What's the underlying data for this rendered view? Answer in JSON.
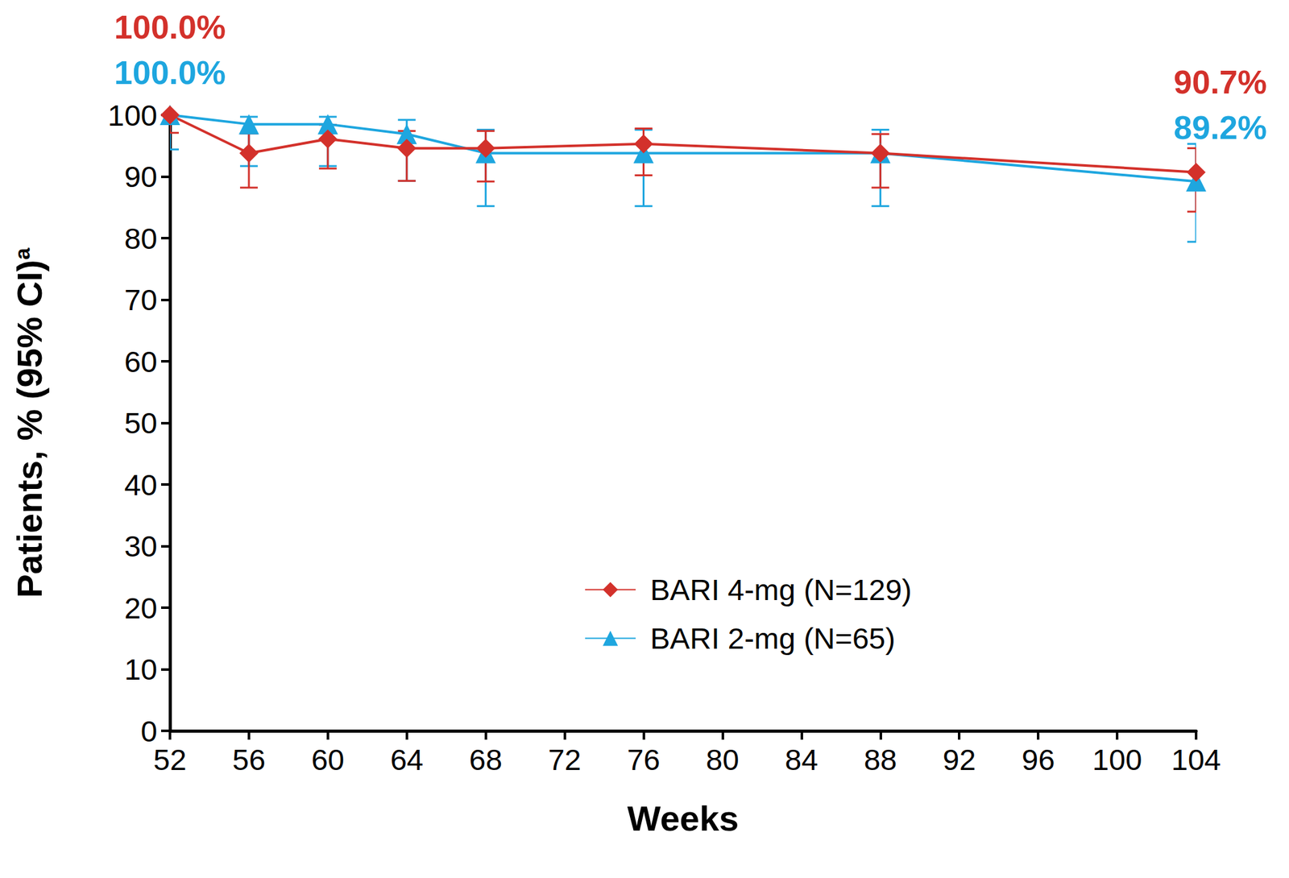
{
  "chart_data": {
    "type": "line",
    "xlabel": "Weeks",
    "ylabel": "Patients, % (95% CI)",
    "ylabel_superscript": "a",
    "x": [
      52,
      56,
      60,
      64,
      68,
      76,
      88,
      104
    ],
    "xlim": [
      52,
      104
    ],
    "xticks": [
      52,
      56,
      60,
      64,
      68,
      72,
      76,
      80,
      84,
      88,
      92,
      96,
      100,
      104
    ],
    "ylim": [
      0,
      100
    ],
    "yticks": [
      0,
      10,
      20,
      30,
      40,
      50,
      60,
      70,
      80,
      90,
      100
    ],
    "grid": false,
    "legend": "lower right",
    "series": [
      {
        "name": "BARI 4-mg (N=129)",
        "color": "#d3312b",
        "marker": "diamond",
        "values": [
          100,
          93.8,
          96.1,
          94.6,
          94.6,
          95.3,
          93.8,
          90.7
        ],
        "ci_lower": [
          97.1,
          88.2,
          91.3,
          89.3,
          89.2,
          90.2,
          88.2,
          84.3
        ],
        "ci_upper": [
          100,
          97.0,
          98.4,
          97.4,
          97.4,
          97.8,
          96.9,
          94.6
        ],
        "value_labels": [
          "100.0%",
          null,
          null,
          null,
          null,
          null,
          null,
          "90.7%"
        ]
      },
      {
        "name": "BARI 2-mg (N=65)",
        "color": "#1ea6df",
        "marker": "triangle",
        "values": [
          100,
          98.5,
          98.5,
          96.9,
          93.8,
          93.8,
          93.8,
          89.2
        ],
        "ci_lower": [
          94.4,
          91.7,
          91.7,
          89.3,
          85.2,
          85.2,
          85.2,
          79.4
        ],
        "ci_upper": [
          100,
          99.7,
          99.7,
          99.2,
          97.6,
          97.6,
          97.6,
          95.3
        ],
        "value_labels": [
          "100.0%",
          null,
          null,
          null,
          null,
          null,
          null,
          "89.2%"
        ]
      }
    ]
  }
}
